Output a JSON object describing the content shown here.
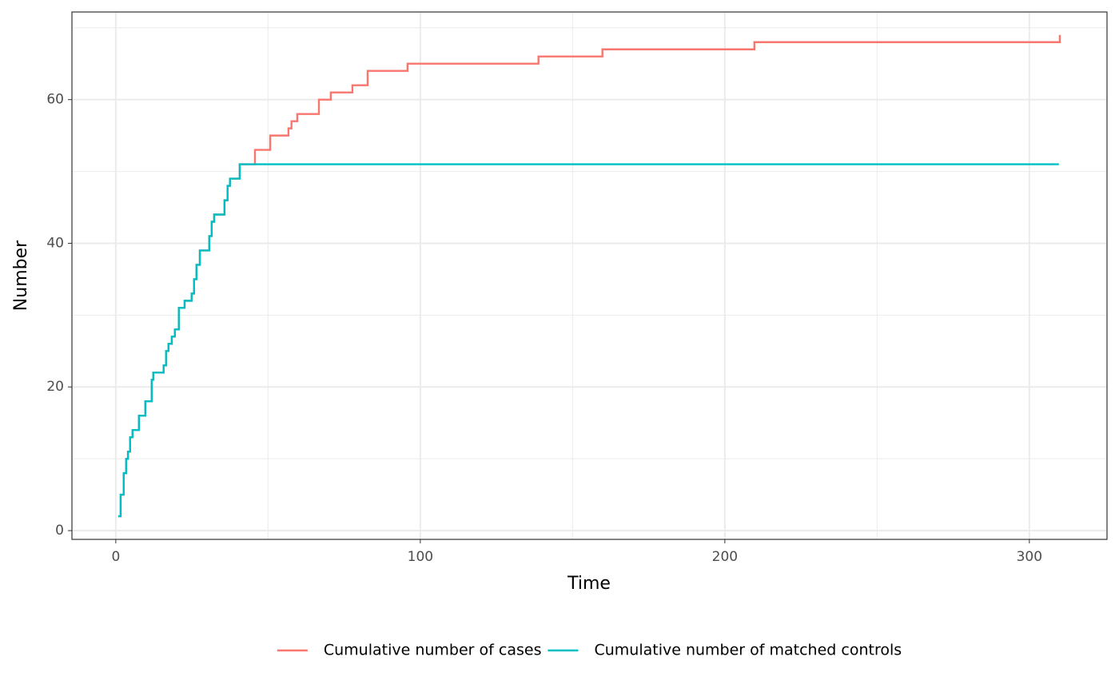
{
  "chart_data": {
    "type": "step",
    "x_label": "Time",
    "y_label": "Number",
    "xlim": [
      -14.4,
      325.5
    ],
    "ylim": [
      -1.22,
      72.2
    ],
    "xticks": [
      0,
      100,
      200,
      300
    ],
    "yticks": [
      0,
      20,
      40,
      60
    ],
    "x_minor_grid": [
      50,
      150,
      250
    ],
    "y_minor_grid": [
      10,
      30,
      50,
      70
    ],
    "grid": true,
    "legend_position": "bottom",
    "series": [
      {
        "name": "Cumulative number of cases",
        "color": "#f8766d",
        "x": [
          0.8,
          1.6,
          2.6,
          3.4,
          4,
          4.7,
          5.5,
          7.6,
          9.7,
          11.8,
          12.3,
          15.7,
          16.5,
          17.3,
          18.4,
          19.4,
          20.7,
          22.6,
          24.9,
          25.7,
          26.5,
          27.6,
          30.7,
          31.5,
          32.3,
          35.7,
          36.7,
          37.5,
          40.7,
          45.7,
          50.7,
          56.7,
          57.7,
          59.6,
          66.7,
          70.6,
          77.7,
          82.7,
          95.8,
          138.8,
          159.8,
          209.7,
          310
        ],
        "values": [
          2,
          5,
          8,
          10,
          11,
          13,
          14,
          16,
          18,
          21,
          22,
          23,
          25,
          26,
          27,
          28,
          31,
          32,
          33,
          35,
          37,
          39,
          41,
          43,
          44,
          46,
          48,
          49,
          51,
          53,
          55,
          56,
          57,
          58,
          60,
          61,
          62,
          64,
          65,
          66,
          67,
          68,
          69
        ]
      },
      {
        "name": "Cumulative number of matched controls",
        "color": "#00bfc4",
        "x": [
          0.8,
          1.6,
          2.6,
          3.4,
          4,
          4.7,
          5.5,
          7.6,
          9.7,
          11.8,
          12.3,
          15.7,
          16.5,
          17.3,
          18.4,
          19.4,
          20.7,
          22.6,
          24.9,
          25.7,
          26.5,
          27.6,
          30.7,
          31.5,
          32.3,
          35.7,
          36.7,
          37.5,
          40.7,
          309.7
        ],
        "values": [
          2,
          5,
          8,
          10,
          11,
          13,
          14,
          16,
          18,
          21,
          22,
          23,
          25,
          26,
          27,
          28,
          31,
          32,
          33,
          35,
          37,
          39,
          41,
          43,
          44,
          46,
          48,
          49,
          51,
          51
        ]
      }
    ]
  }
}
